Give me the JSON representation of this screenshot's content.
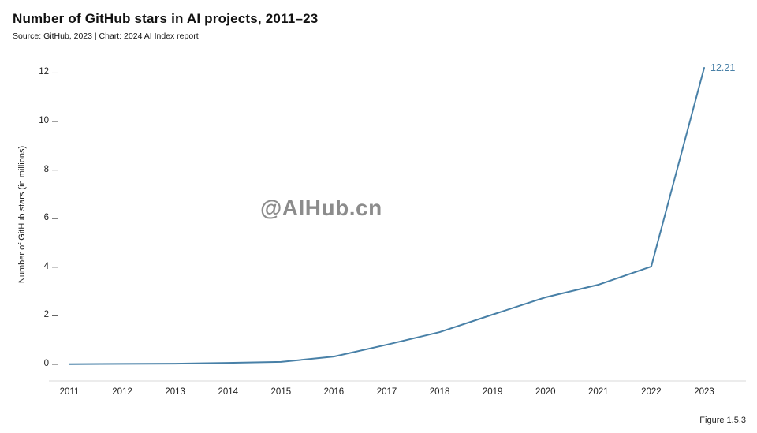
{
  "title": "Number of GitHub stars in AI projects, 2011–23",
  "subtitle": "Source: GitHub, 2023 | Chart: 2024 AI Index report",
  "watermark": "@AIHub.cn",
  "figure_label": "Figure 1.5.3",
  "colors": {
    "line": "#4880a7",
    "end_label": "#4880a7",
    "axis_line": "#d9d9d9",
    "tick_mark": "#555555",
    "text": "#222222"
  },
  "chart_data": {
    "type": "line",
    "x": [
      2011,
      2012,
      2013,
      2014,
      2015,
      2016,
      2017,
      2018,
      2019,
      2020,
      2021,
      2022,
      2023
    ],
    "values": [
      0.01,
      0.02,
      0.03,
      0.06,
      0.1,
      0.32,
      0.81,
      1.33,
      2.05,
      2.76,
      3.28,
      4.03,
      12.21
    ],
    "series_name": "GitHub stars in AI projects",
    "title": "Number of GitHub stars in AI projects, 2011–23",
    "xlabel": "",
    "ylabel": "Number of GitHub stars (in millions)",
    "ylim": [
      0,
      12.21
    ],
    "yticks": [
      0,
      2,
      4,
      6,
      8,
      10,
      12
    ],
    "grid": false,
    "legend": false,
    "end_label": "12.21"
  }
}
